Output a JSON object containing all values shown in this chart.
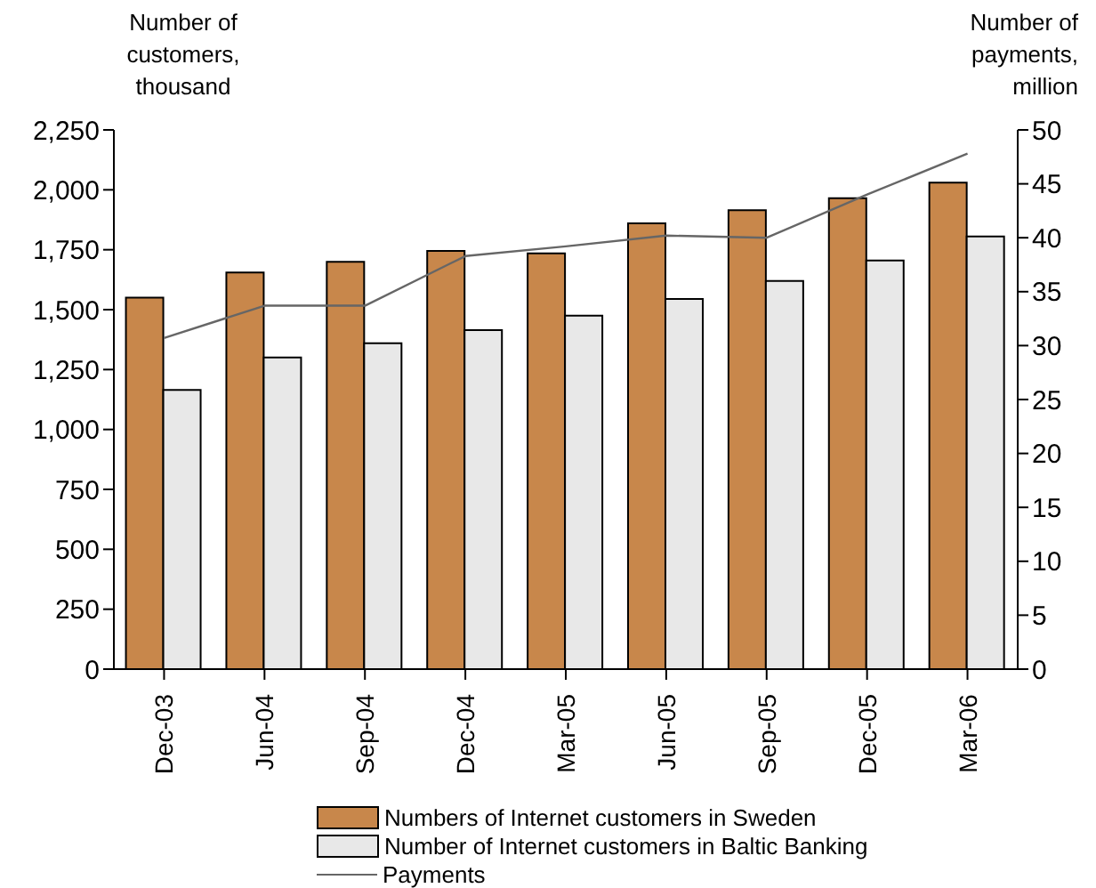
{
  "chart_data": {
    "type": "bar",
    "ylabel": "Number of customers, thousand",
    "y2label": "Number of payments, million",
    "categories": [
      "Dec-03",
      "Jun-04",
      "Sep-04",
      "Dec-04",
      "Mar-05",
      "Jun-05",
      "Sep-05",
      "Dec-05",
      "Mar-06"
    ],
    "series": [
      {
        "name": "Numbers of Internet customers in Sweden",
        "color": "#c8874b",
        "values": [
          1550,
          1655,
          1700,
          1745,
          1735,
          1860,
          1915,
          1965,
          2030
        ]
      },
      {
        "name": "Number of Internet customers in Baltic Banking",
        "color": "#e8e8e8",
        "values": [
          1165,
          1300,
          1360,
          1415,
          1475,
          1545,
          1620,
          1705,
          1805
        ]
      },
      {
        "name": "Payments",
        "type": "line",
        "axis": "y2",
        "color": "#666666",
        "values": [
          30.7,
          33.7,
          33.7,
          38.3,
          39.2,
          40.2,
          40.0,
          44.0,
          47.8
        ]
      }
    ],
    "ylim": [
      0,
      2250
    ],
    "yticks": [
      0,
      250,
      500,
      750,
      {
        "value": 1000,
        "label": "1,000"
      },
      {
        "value": 1250,
        "label": "1,250"
      },
      {
        "value": 1500,
        "label": "1,500"
      },
      {
        "value": 1750,
        "label": "1,750"
      },
      {
        "value": 2000,
        "label": "2,000"
      },
      {
        "value": 2250,
        "label": "2,250"
      }
    ],
    "y2lim": [
      0,
      50
    ],
    "y2ticks": [
      0,
      5,
      10,
      15,
      20,
      25,
      30,
      35,
      40,
      45,
      50
    ],
    "grid": false,
    "legend": "bottom",
    "marker": "none"
  }
}
